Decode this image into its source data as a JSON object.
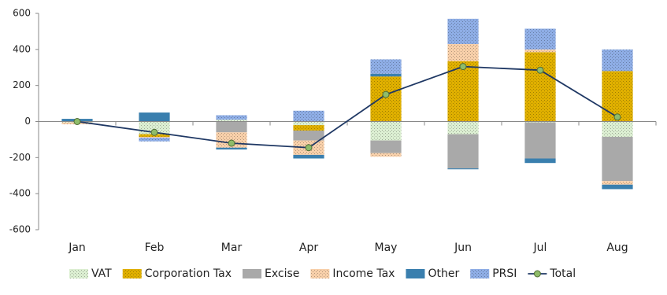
{
  "chart_data": {
    "type": "bar",
    "categories": [
      "Jan",
      "Feb",
      "Mar",
      "Apr",
      "May",
      "Jun",
      "Jul",
      "Aug"
    ],
    "series": [
      {
        "name": "VAT",
        "color": "#dcefd2",
        "values": [
          -5,
          -70,
          10,
          -20,
          -105,
          -70,
          -5,
          -85
        ]
      },
      {
        "name": "Corporation Tax",
        "color": "#e0b000",
        "values": [
          0,
          -15,
          0,
          -30,
          250,
          335,
          385,
          280
        ]
      },
      {
        "name": "Excise",
        "color": "#a9a9a9",
        "values": [
          0,
          0,
          -60,
          -55,
          -70,
          -190,
          -200,
          -245
        ]
      },
      {
        "name": "Income Tax",
        "color": "#f8d0aa",
        "values": [
          -10,
          -5,
          -85,
          -80,
          -20,
          95,
          15,
          -20
        ]
      },
      {
        "name": "Other",
        "color": "#3a7fae",
        "values": [
          15,
          50,
          -10,
          -20,
          15,
          -5,
          -25,
          -25
        ]
      },
      {
        "name": "PRSI",
        "color": "#8faee6",
        "values": [
          0,
          -20,
          25,
          60,
          80,
          140,
          115,
          120
        ]
      },
      {
        "name": "Total",
        "type": "line",
        "color": "#1f3864",
        "values": [
          0,
          -60,
          -120,
          -145,
          150,
          305,
          285,
          25
        ]
      }
    ],
    "ylim": [
      -600,
      600
    ],
    "yticks": [
      -600,
      -400,
      -200,
      0,
      200,
      400,
      600
    ]
  }
}
